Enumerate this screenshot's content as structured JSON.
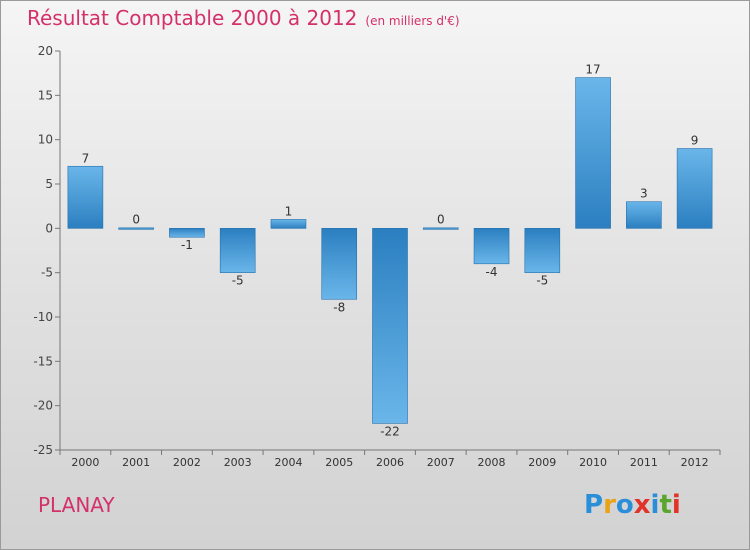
{
  "header": {
    "title": "Résultat Comptable 2000 à 2012",
    "unit_note": "(en milliers d'€)"
  },
  "commune": "PLANAY",
  "brand": {
    "letters": [
      "P",
      "r",
      "o",
      "x",
      "i",
      "t",
      "i"
    ],
    "colors": [
      "#2a8fd8",
      "#e9a31a",
      "#2a8fd8",
      "#e2332b",
      "#2a8fd8",
      "#5aa62d",
      "#e2332b"
    ]
  },
  "colors": {
    "bar_light": "#6ab6ea",
    "bar_dark": "#2b7fc0",
    "title": "#d4306a"
  },
  "chart_data": {
    "type": "bar",
    "title": "Résultat Comptable 2000 à 2012",
    "ylabel": "(en milliers d'€)",
    "xlabel": "",
    "categories": [
      "2000",
      "2001",
      "2002",
      "2003",
      "2004",
      "2005",
      "2006",
      "2007",
      "2008",
      "2009",
      "2010",
      "2011",
      "2012"
    ],
    "values": [
      7,
      0,
      -1,
      -5,
      1,
      -8,
      -22,
      0,
      -4,
      -5,
      17,
      3,
      9
    ],
    "labels": [
      "7",
      "0",
      "-1",
      "-5",
      "1",
      "-8",
      "-22",
      "0",
      "-4",
      "-5",
      "17",
      "3",
      "9"
    ],
    "ylim": [
      -25,
      20
    ],
    "yticks": [
      20,
      15,
      10,
      5,
      0,
      -5,
      -10,
      -15,
      -20,
      -25
    ],
    "grid": false,
    "legend": "none"
  }
}
